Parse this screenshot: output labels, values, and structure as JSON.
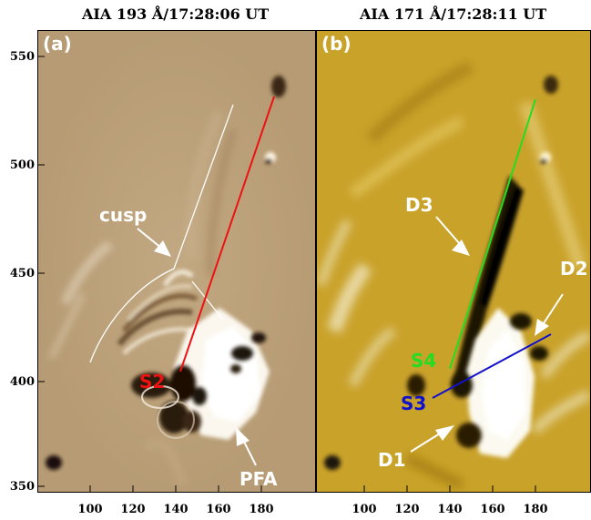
{
  "panels": [
    {
      "label": "(a)",
      "title": "AIA 193 Å/17:28:06 UT",
      "annotations": {
        "cusp": "cusp",
        "slit": "S2",
        "pfa": "PFA"
      },
      "slit_color": "#ee1111"
    },
    {
      "label": "(b)",
      "title": "AIA 171 Å/17:28:11 UT",
      "annotations": {
        "d1": "D1",
        "d2": "D2",
        "d3": "D3",
        "s3": "S3",
        "s4": "S4"
      },
      "slit_colors": {
        "S3": "#1111cc",
        "S4": "#22dd22"
      }
    }
  ],
  "y_ticks": [
    "550",
    "500",
    "450",
    "400",
    "350"
  ],
  "x_ticks": [
    "100",
    "120",
    "140",
    "160",
    "180"
  ]
}
